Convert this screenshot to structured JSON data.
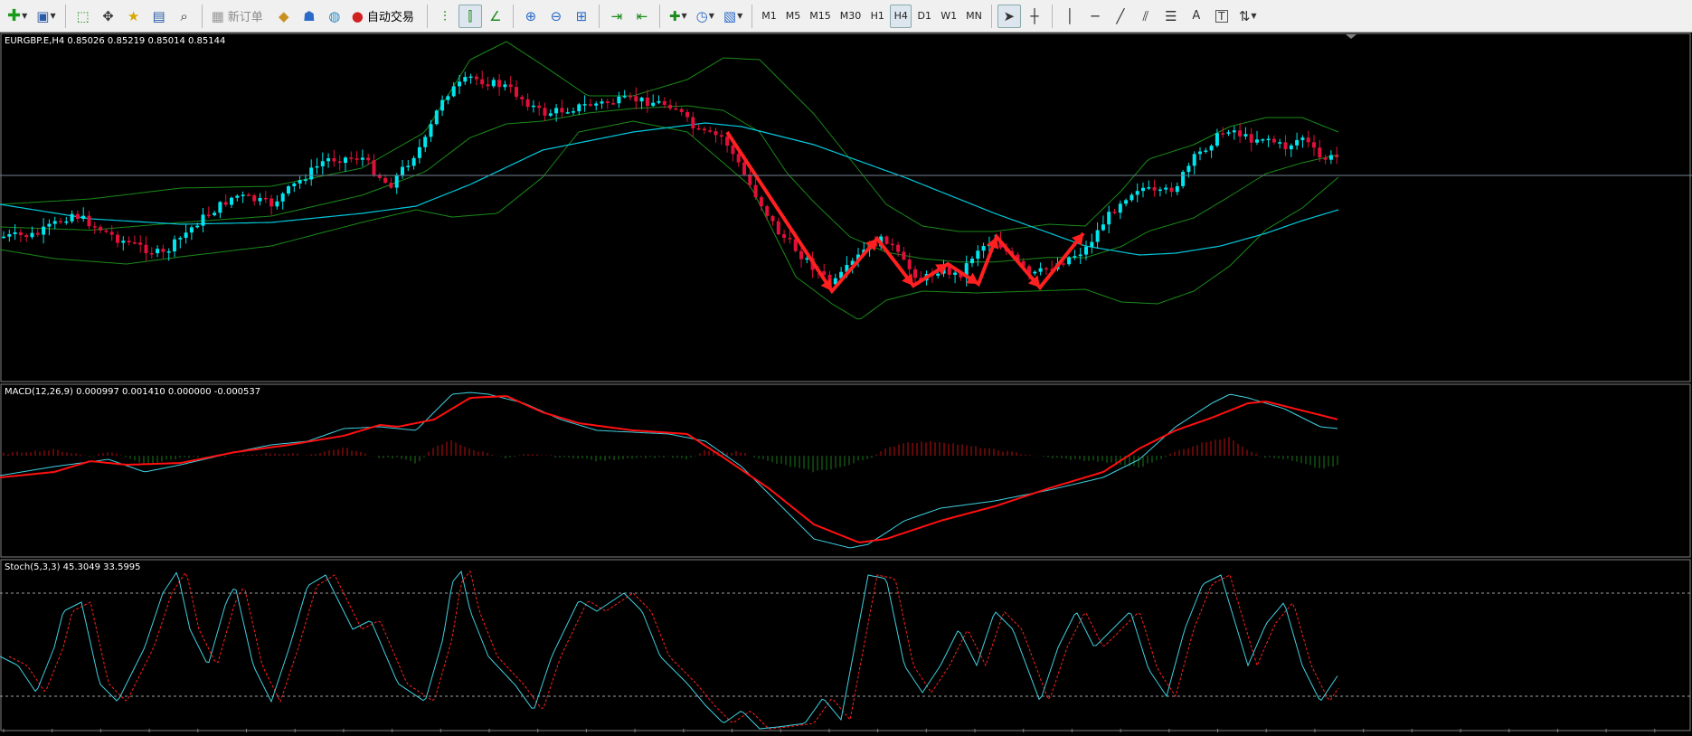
{
  "toolbar": {
    "new_order_label": "新订单",
    "auto_trading_label": "自动交易",
    "timeframes": [
      "M1",
      "M5",
      "M15",
      "M30",
      "H1",
      "H4",
      "D1",
      "W1",
      "MN"
    ],
    "active_timeframe": "H4"
  },
  "main_pane": {
    "header": "EURGBP.E,H4  0.85026 0.85219 0.85014 0.85144"
  },
  "macd_pane": {
    "header": "MACD(12,26,9) 0.000997 0.001410 0.000000 -0.000537"
  },
  "stoch_pane": {
    "header": "Stoch(5,3,3) 45.3049 33.5995"
  },
  "colors": {
    "background": "#000000",
    "bull_candle": "#00e5ee",
    "bear_candle": "#e0103a",
    "ma_line": "#00c8dc",
    "bollinger": "#1a8a1a",
    "zigzag": "#ff2020",
    "macd_line": "#40d0e0",
    "signal_line": "#ff1010",
    "hist_pos": "#c01010",
    "hist_neg": "#1a7a1a",
    "stoch_main": "#40d0e0",
    "stoch_signal": "#ff2020",
    "grid_line": "#808080"
  }
}
